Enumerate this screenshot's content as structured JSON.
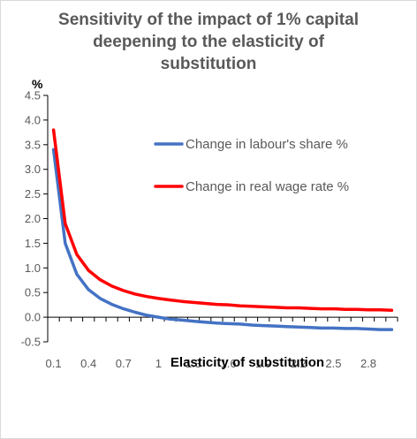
{
  "chart_data": {
    "type": "line",
    "title_lines": [
      "Sensitivity of the impact of 1% capital",
      "deepening to the elasticity of",
      "substitution"
    ],
    "xlabel": "Elasticity of substitution",
    "ylabel": "%",
    "x": [
      0.1,
      0.2,
      0.3,
      0.4,
      0.5,
      0.6,
      0.7,
      0.8,
      0.9,
      1.0,
      1.1,
      1.2,
      1.3,
      1.4,
      1.5,
      1.6,
      1.7,
      1.8,
      1.9,
      2.0,
      2.1,
      2.2,
      2.3,
      2.4,
      2.5,
      2.6,
      2.7,
      2.8,
      2.9,
      3.0
    ],
    "x_tick_labels": [
      "0.1",
      "0.4",
      "0.7",
      "1",
      "1.3",
      "1.6",
      "1.9",
      "2.2",
      "2.5",
      "2.8"
    ],
    "y_tick_labels": [
      "4.5",
      "4.0",
      "3.5",
      "3.0",
      "2.5",
      "2.0",
      "1.5",
      "1.0",
      "0.5",
      "0.0",
      "-0.5"
    ],
    "ylim": [
      -0.5,
      4.5
    ],
    "legend_position": "top-right",
    "series": [
      {
        "name": "Change in labour's share %",
        "color": "#4472c4",
        "values": [
          3.4,
          1.5,
          0.87,
          0.56,
          0.38,
          0.26,
          0.17,
          0.1,
          0.04,
          0.0,
          -0.04,
          -0.06,
          -0.08,
          -0.1,
          -0.12,
          -0.13,
          -0.14,
          -0.16,
          -0.17,
          -0.18,
          -0.19,
          -0.2,
          -0.21,
          -0.22,
          -0.22,
          -0.23,
          -0.23,
          -0.24,
          -0.25,
          -0.25
        ]
      },
      {
        "name": "Change in real wage rate %",
        "color": "#ff0000",
        "values": [
          3.8,
          1.9,
          1.27,
          0.95,
          0.76,
          0.63,
          0.54,
          0.47,
          0.42,
          0.38,
          0.35,
          0.32,
          0.3,
          0.28,
          0.26,
          0.25,
          0.23,
          0.22,
          0.21,
          0.2,
          0.19,
          0.19,
          0.18,
          0.17,
          0.17,
          0.16,
          0.16,
          0.15,
          0.15,
          0.14
        ]
      }
    ]
  }
}
